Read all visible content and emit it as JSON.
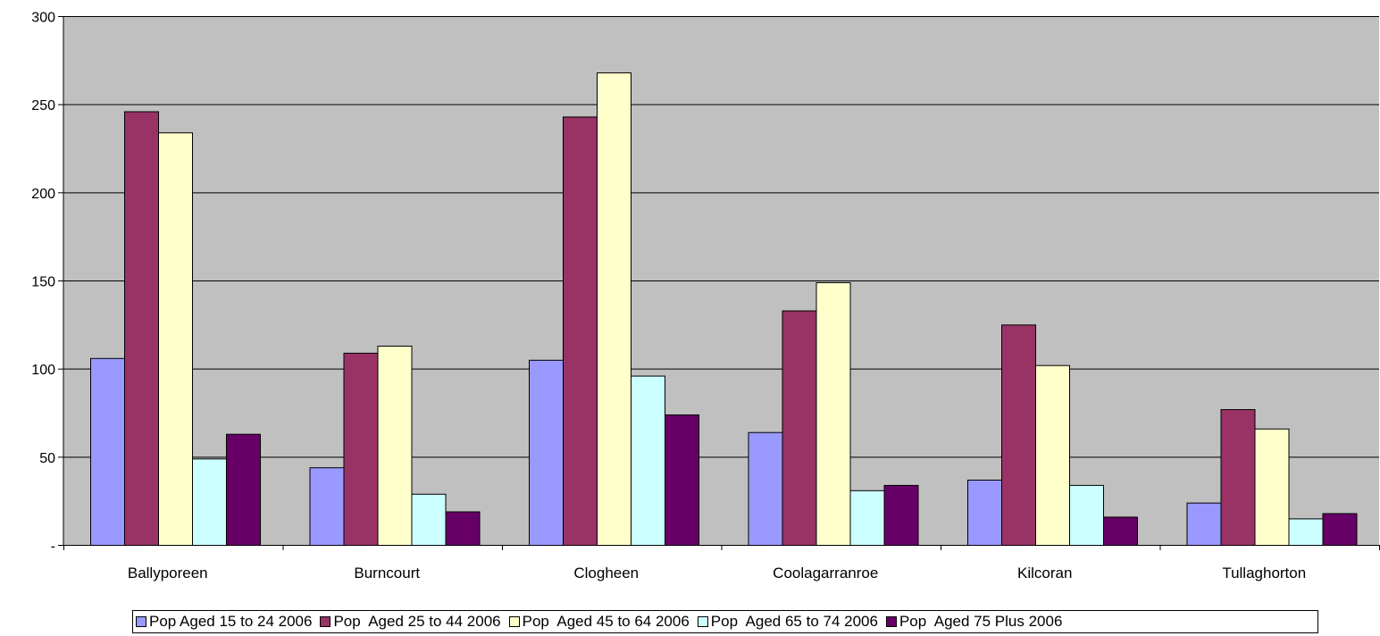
{
  "chart_data": {
    "type": "bar",
    "categories": [
      "Ballyporeen",
      "Burncourt",
      "Clogheen",
      "Coolagarranroe",
      "Kilcoran",
      "Tullaghorton"
    ],
    "series": [
      {
        "name": "Pop Aged 15 to 24 2006",
        "color": "#9999ff",
        "values": [
          106,
          44,
          105,
          64,
          37,
          24
        ]
      },
      {
        "name": "Pop  Aged 25 to 44 2006",
        "color": "#993366",
        "values": [
          246,
          109,
          243,
          133,
          125,
          77
        ]
      },
      {
        "name": "Pop  Aged 45 to 64 2006",
        "color": "#ffffcc",
        "values": [
          234,
          113,
          268,
          149,
          102,
          66
        ]
      },
      {
        "name": "Pop  Aged 65 to 74 2006",
        "color": "#ccffff",
        "values": [
          49,
          29,
          96,
          31,
          34,
          15
        ]
      },
      {
        "name": "Pop  Aged 75 Plus 2006",
        "color": "#660066",
        "values": [
          63,
          19,
          74,
          34,
          16,
          18
        ]
      }
    ],
    "y_ticks": [
      {
        "value": 0,
        "label": "-"
      },
      {
        "value": 50,
        "label": "50"
      },
      {
        "value": 100,
        "label": "100"
      },
      {
        "value": 150,
        "label": "150"
      },
      {
        "value": 200,
        "label": "200"
      },
      {
        "value": 250,
        "label": "250"
      },
      {
        "value": 300,
        "label": "300"
      }
    ],
    "ylim": [
      0,
      300
    ],
    "grid": true,
    "plot_background": "#c0c0c0",
    "legend_position": "bottom"
  }
}
